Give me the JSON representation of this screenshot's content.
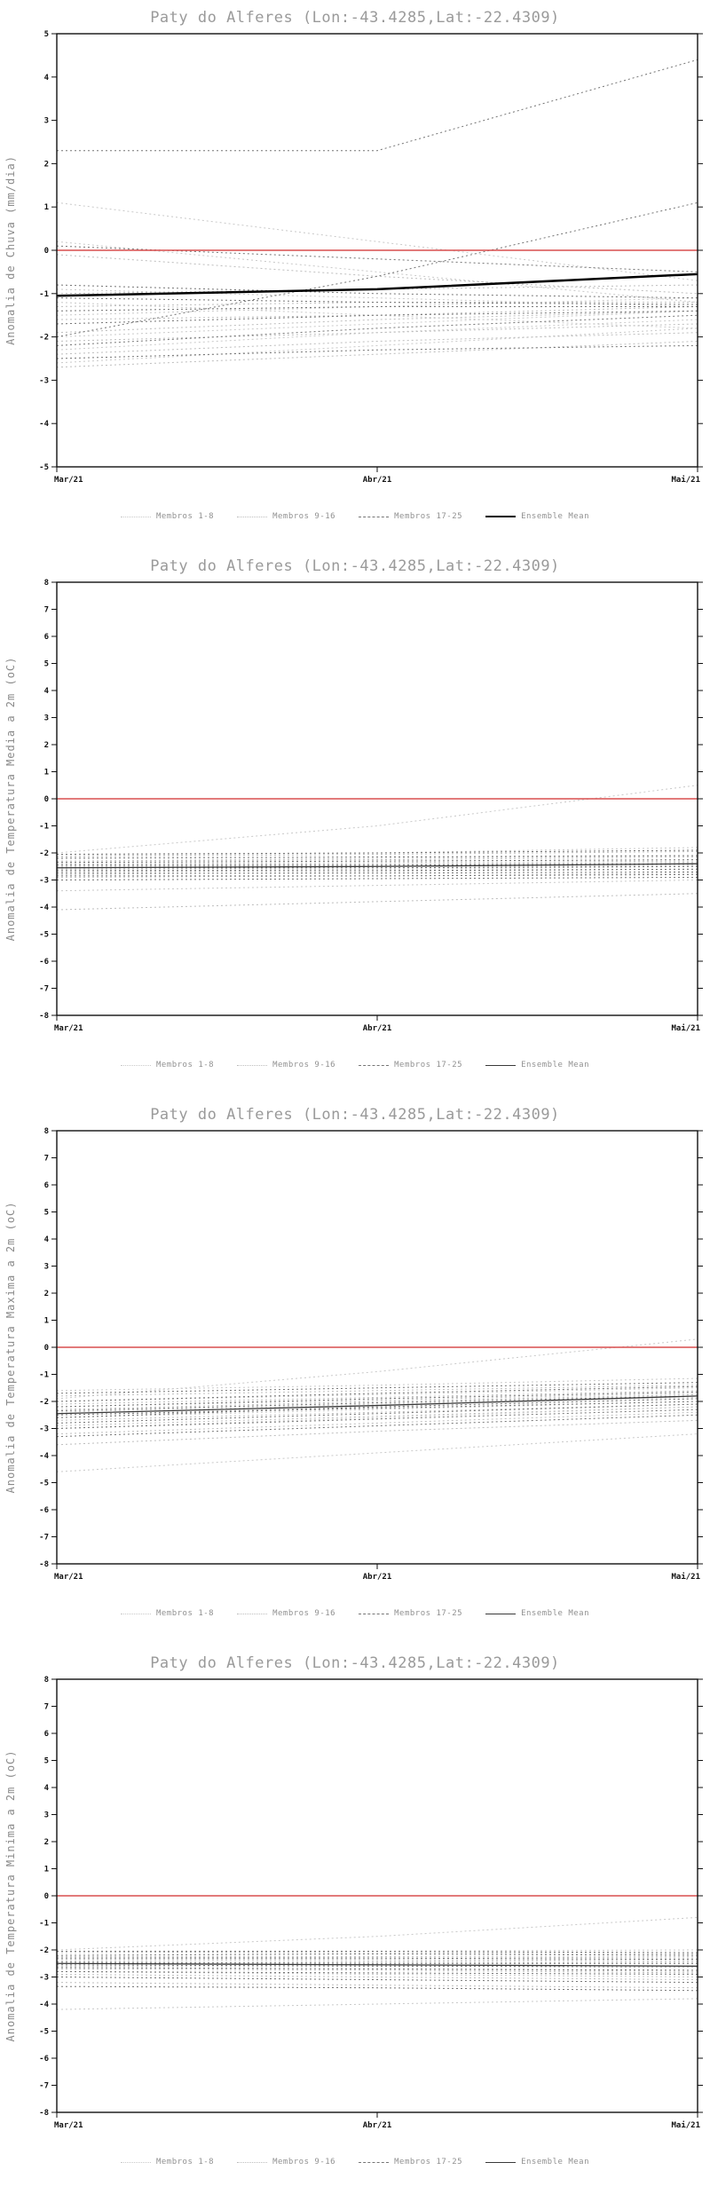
{
  "chart_data": [
    {
      "type": "line",
      "title": "Paty do Alferes (Lon:-43.4285,Lat:-22.4309)",
      "ylabel": "Anomalia de Chuva (mm/dia)",
      "ylim": [
        -5,
        5
      ],
      "ytick_step": 1,
      "x": [
        "Mar/21",
        "Abr/21",
        "Mai/21"
      ],
      "zero_line": {
        "value": 0,
        "color": "#d94f4f"
      },
      "series": [
        {
          "name": "Membros 1-8",
          "color": "#c9c9c9",
          "dash": true,
          "width": 1,
          "members": [
            [
              1.1,
              0.2,
              -0.7
            ],
            [
              0.2,
              -0.5,
              -1.2
            ],
            [
              -0.9,
              -1.1,
              -1.3
            ],
            [
              -1.5,
              -1.3,
              -1.1
            ],
            [
              -2.0,
              -1.7,
              -1.4
            ],
            [
              -2.3,
              -1.9,
              -1.6
            ],
            [
              -2.6,
              -2.2,
              -1.8
            ],
            [
              -1.2,
              -1.5,
              -1.8
            ]
          ]
        },
        {
          "name": "Membros 9-16",
          "color": "#bdbdbd",
          "dash": true,
          "width": 1,
          "members": [
            [
              -0.1,
              -0.6,
              -1.0
            ],
            [
              -1.0,
              -0.9,
              -0.8
            ],
            [
              -1.3,
              -1.2,
              -1.2
            ],
            [
              -1.6,
              -1.5,
              -1.3
            ],
            [
              -1.9,
              -1.6,
              -1.4
            ],
            [
              -2.1,
              -1.9,
              -1.7
            ],
            [
              -2.4,
              -2.1,
              -1.9
            ],
            [
              -2.7,
              -2.4,
              -2.1
            ]
          ]
        },
        {
          "name": "Membros 17-25",
          "color": "#757575",
          "dash": true,
          "width": 1,
          "members": [
            [
              2.3,
              2.3,
              4.4
            ],
            [
              -2.0,
              -0.6,
              1.1
            ],
            [
              0.1,
              -0.2,
              -0.5
            ],
            [
              -0.8,
              -1.0,
              -1.1
            ],
            [
              -1.1,
              -1.2,
              -1.25
            ],
            [
              -1.4,
              -1.3,
              -1.3
            ],
            [
              -1.7,
              -1.5,
              -1.4
            ],
            [
              -2.2,
              -1.8,
              -1.5
            ],
            [
              -2.5,
              -2.3,
              -2.2
            ]
          ]
        },
        {
          "name": "Ensemble Mean",
          "color": "#000000",
          "dash": false,
          "width": 2.5,
          "mean": true,
          "members": [
            [
              -1.05,
              -0.9,
              -0.55
            ]
          ]
        }
      ]
    },
    {
      "type": "line",
      "title": "Paty do Alferes (Lon:-43.4285,Lat:-22.4309)",
      "ylabel": "Anomalia de Temperatura Media a 2m (oC)",
      "ylim": [
        -8,
        8
      ],
      "ytick_step": 1,
      "x": [
        "Mar/21",
        "Abr/21",
        "Mai/21"
      ],
      "zero_line": {
        "value": 0,
        "color": "#d94f4f"
      },
      "series": [
        {
          "name": "Membros 1-8",
          "color": "#c9c9c9",
          "dash": true,
          "width": 1,
          "members": [
            [
              -2.0,
              -1.0,
              0.5
            ],
            [
              -2.1,
              -2.0,
              -1.8
            ],
            [
              -2.3,
              -2.2,
              -2.1
            ],
            [
              -2.4,
              -2.35,
              -2.3
            ],
            [
              -2.5,
              -2.45,
              -2.4
            ],
            [
              -2.65,
              -2.6,
              -2.5
            ],
            [
              -2.8,
              -2.7,
              -2.6
            ],
            [
              -3.4,
              -3.2,
              -3.0
            ]
          ]
        },
        {
          "name": "Membros 9-16",
          "color": "#bdbdbd",
          "dash": true,
          "width": 1,
          "members": [
            [
              -2.15,
              -2.05,
              -1.95
            ],
            [
              -2.3,
              -2.25,
              -2.15
            ],
            [
              -2.4,
              -2.4,
              -2.35
            ],
            [
              -2.5,
              -2.5,
              -2.45
            ],
            [
              -2.6,
              -2.55,
              -2.5
            ],
            [
              -2.7,
              -2.65,
              -2.6
            ],
            [
              -2.9,
              -2.85,
              -2.75
            ],
            [
              -4.1,
              -3.8,
              -3.5
            ]
          ]
        },
        {
          "name": "Membros 17-25",
          "color": "#757575",
          "dash": true,
          "width": 1,
          "members": [
            [
              -2.05,
              -2.0,
              -1.9
            ],
            [
              -2.2,
              -2.15,
              -2.1
            ],
            [
              -2.35,
              -2.3,
              -2.25
            ],
            [
              -2.45,
              -2.45,
              -2.4
            ],
            [
              -2.55,
              -2.55,
              -2.5
            ],
            [
              -2.65,
              -2.65,
              -2.6
            ],
            [
              -2.75,
              -2.75,
              -2.7
            ],
            [
              -2.85,
              -2.85,
              -2.8
            ],
            [
              -3.0,
              -2.95,
              -2.9
            ]
          ]
        },
        {
          "name": "Ensemble Mean",
          "color": "#3a3a3a",
          "dash": false,
          "width": 1.3,
          "mean": true,
          "members": [
            [
              -2.55,
              -2.5,
              -2.4
            ]
          ]
        }
      ]
    },
    {
      "type": "line",
      "title": "Paty do Alferes (Lon:-43.4285,Lat:-22.4309)",
      "ylabel": "Anomalia de Temperatura Maxima a 2m (oC)",
      "ylim": [
        -8,
        8
      ],
      "ytick_step": 1,
      "x": [
        "Mar/21",
        "Abr/21",
        "Mai/21"
      ],
      "zero_line": {
        "value": 0,
        "color": "#d94f4f"
      },
      "series": [
        {
          "name": "Membros 1-8",
          "color": "#c9c9c9",
          "dash": true,
          "width": 1,
          "members": [
            [
              -1.9,
              -0.9,
              0.3
            ],
            [
              -1.6,
              -1.4,
              -1.15
            ],
            [
              -2.0,
              -1.75,
              -1.5
            ],
            [
              -2.2,
              -1.95,
              -1.7
            ],
            [
              -2.4,
              -2.1,
              -1.85
            ],
            [
              -2.6,
              -2.3,
              -2.0
            ],
            [
              -3.0,
              -2.6,
              -2.2
            ],
            [
              -4.6,
              -3.9,
              -3.2
            ]
          ]
        },
        {
          "name": "Membros 9-16",
          "color": "#bdbdbd",
          "dash": true,
          "width": 1,
          "members": [
            [
              -1.8,
              -1.6,
              -1.4
            ],
            [
              -2.1,
              -1.85,
              -1.6
            ],
            [
              -2.3,
              -2.0,
              -1.75
            ],
            [
              -2.5,
              -2.2,
              -1.9
            ],
            [
              -2.7,
              -2.4,
              -2.1
            ],
            [
              -2.9,
              -2.55,
              -2.2
            ],
            [
              -3.2,
              -2.8,
              -2.4
            ],
            [
              -3.6,
              -3.1,
              -2.7
            ]
          ]
        },
        {
          "name": "Membros 17-25",
          "color": "#757575",
          "dash": true,
          "width": 1,
          "members": [
            [
              -1.7,
              -1.5,
              -1.3
            ],
            [
              -2.0,
              -1.7,
              -1.45
            ],
            [
              -2.2,
              -1.9,
              -1.65
            ],
            [
              -2.35,
              -2.05,
              -1.8
            ],
            [
              -2.5,
              -2.25,
              -2.0
            ],
            [
              -2.8,
              -2.45,
              -2.1
            ],
            [
              -3.0,
              -2.65,
              -2.3
            ],
            [
              -3.3,
              -2.9,
              -2.5
            ],
            [
              -2.6,
              -2.2,
              -1.9
            ]
          ]
        },
        {
          "name": "Ensemble Mean",
          "color": "#3a3a3a",
          "dash": false,
          "width": 1.3,
          "mean": true,
          "members": [
            [
              -2.45,
              -2.15,
              -1.8
            ]
          ]
        }
      ]
    },
    {
      "type": "line",
      "title": "Paty do Alferes (Lon:-43.4285,Lat:-22.4309)",
      "ylabel": "Anomalia de Temperatura Minima a 2m (oC)",
      "ylim": [
        -8,
        8
      ],
      "ytick_step": 1,
      "x": [
        "Mar/21",
        "Abr/21",
        "Mai/21"
      ],
      "zero_line": {
        "value": 0,
        "color": "#d94f4f"
      },
      "series": [
        {
          "name": "Membros 1-8",
          "color": "#c9c9c9",
          "dash": true,
          "width": 1,
          "members": [
            [
              -2.0,
              -1.5,
              -0.8
            ],
            [
              -2.1,
              -2.05,
              -2.0
            ],
            [
              -2.3,
              -2.25,
              -2.25
            ],
            [
              -2.4,
              -2.4,
              -2.45
            ],
            [
              -2.5,
              -2.55,
              -2.6
            ],
            [
              -2.65,
              -2.7,
              -2.8
            ],
            [
              -2.8,
              -2.9,
              -3.0
            ],
            [
              -4.2,
              -4.0,
              -3.8
            ]
          ]
        },
        {
          "name": "Membros 9-16",
          "color": "#bdbdbd",
          "dash": true,
          "width": 1,
          "members": [
            [
              -2.1,
              -2.1,
              -2.15
            ],
            [
              -2.25,
              -2.25,
              -2.3
            ],
            [
              -2.35,
              -2.35,
              -2.4
            ],
            [
              -2.5,
              -2.45,
              -2.5
            ],
            [
              -2.6,
              -2.6,
              -2.65
            ],
            [
              -2.7,
              -2.75,
              -2.85
            ],
            [
              -2.9,
              -3.0,
              -3.1
            ],
            [
              -3.2,
              -3.3,
              -3.4
            ]
          ]
        },
        {
          "name": "Membros 17-25",
          "color": "#757575",
          "dash": true,
          "width": 1,
          "members": [
            [
              -2.05,
              -2.05,
              -2.1
            ],
            [
              -2.2,
              -2.15,
              -2.2
            ],
            [
              -2.3,
              -2.3,
              -2.35
            ],
            [
              -2.45,
              -2.5,
              -2.5
            ],
            [
              -2.55,
              -2.6,
              -2.6
            ],
            [
              -2.65,
              -2.7,
              -2.75
            ],
            [
              -2.8,
              -2.85,
              -2.9
            ],
            [
              -3.0,
              -3.1,
              -3.2
            ],
            [
              -3.35,
              -3.4,
              -3.5
            ]
          ]
        },
        {
          "name": "Ensemble Mean",
          "color": "#3a3a3a",
          "dash": false,
          "width": 1.3,
          "mean": true,
          "members": [
            [
              -2.5,
              -2.55,
              -2.6
            ]
          ]
        }
      ]
    }
  ]
}
